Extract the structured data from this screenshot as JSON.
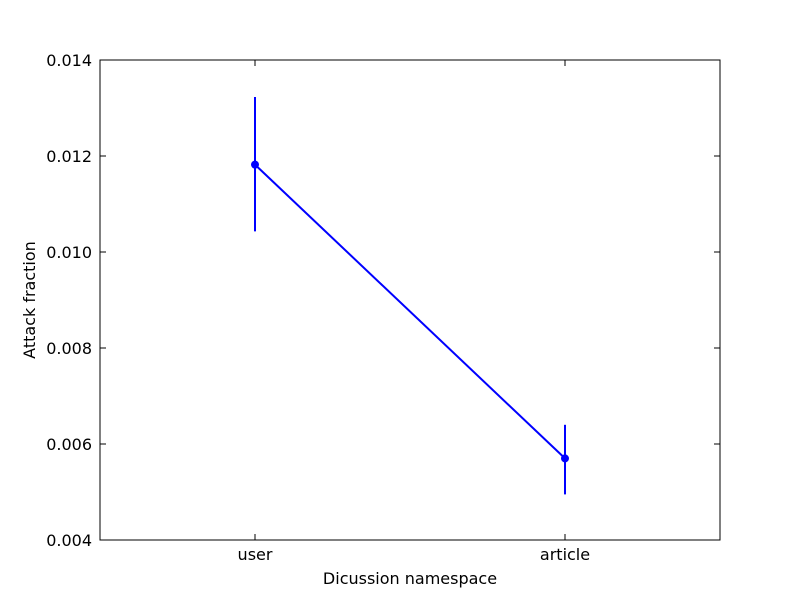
{
  "chart_data": {
    "type": "line",
    "title": "",
    "xlabel": "Dicussion namespace",
    "ylabel": "Attack fraction",
    "categories": [
      "user",
      "article"
    ],
    "series": [
      {
        "color": "#0000ff",
        "values": [
          0.01182,
          0.0057
        ],
        "error_low": [
          0.01043,
          0.00495
        ],
        "error_high": [
          0.01323,
          0.0064
        ]
      }
    ],
    "ylim": [
      0.004,
      0.014
    ],
    "yticks": [
      "0.004",
      "0.006",
      "0.008",
      "0.010",
      "0.012",
      "0.014"
    ],
    "grid": false,
    "legend": "none"
  }
}
